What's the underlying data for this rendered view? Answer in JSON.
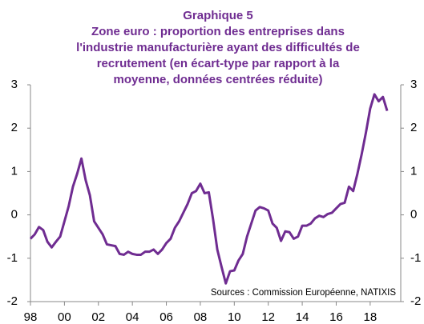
{
  "chart_data": {
    "type": "line",
    "title": [
      "Graphique 5",
      "Zone euro : proportion des entreprises dans",
      "l'industrie manufacturière ayant des difficultés de",
      "recrutement (en écart-type par rapport à la",
      "moyenne, données centrées réduite)"
    ],
    "source": "Sources : Commission Européenne, NATIXIS",
    "x": [
      1998,
      1998.25,
      1998.5,
      1998.75,
      1999,
      1999.25,
      1999.5,
      1999.75,
      2000,
      2000.25,
      2000.5,
      2000.75,
      2001,
      2001.25,
      2001.5,
      2001.75,
      2002,
      2002.25,
      2002.5,
      2002.75,
      2003,
      2003.25,
      2003.5,
      2003.75,
      2004,
      2004.25,
      2004.5,
      2004.75,
      2005,
      2005.25,
      2005.5,
      2005.75,
      2006,
      2006.25,
      2006.5,
      2006.75,
      2007,
      2007.25,
      2007.5,
      2007.75,
      2008,
      2008.25,
      2008.5,
      2008.75,
      2009,
      2009.25,
      2009.5,
      2009.75,
      2010,
      2010.25,
      2010.5,
      2010.75,
      2011,
      2011.25,
      2011.5,
      2011.75,
      2012,
      2012.25,
      2012.5,
      2012.75,
      2013,
      2013.25,
      2013.5,
      2013.75,
      2014,
      2014.25,
      2014.5,
      2014.75,
      2015,
      2015.25,
      2015.5,
      2015.75,
      2016,
      2016.25,
      2016.5,
      2016.75,
      2017,
      2017.25,
      2017.5,
      2017.75,
      2018,
      2018.25,
      2018.5,
      2018.75,
      2019
    ],
    "series": [
      {
        "name": "Difficultés de recrutement",
        "color": "#6f2c91",
        "values": [
          -0.55,
          -0.45,
          -0.28,
          -0.35,
          -0.62,
          -0.75,
          -0.62,
          -0.5,
          -0.15,
          0.2,
          0.65,
          0.95,
          1.3,
          0.8,
          0.45,
          -0.15,
          -0.3,
          -0.45,
          -0.68,
          -0.7,
          -0.72,
          -0.9,
          -0.92,
          -0.85,
          -0.9,
          -0.92,
          -0.92,
          -0.85,
          -0.85,
          -0.8,
          -0.9,
          -0.8,
          -0.65,
          -0.55,
          -0.3,
          -0.15,
          0.05,
          0.25,
          0.5,
          0.55,
          0.72,
          0.5,
          0.52,
          -0.1,
          -0.8,
          -1.2,
          -1.58,
          -1.3,
          -1.28,
          -1.05,
          -0.9,
          -0.5,
          -0.2,
          0.1,
          0.18,
          0.15,
          0.1,
          -0.2,
          -0.3,
          -0.6,
          -0.38,
          -0.4,
          -0.55,
          -0.5,
          -0.25,
          -0.25,
          -0.2,
          -0.08,
          -0.02,
          -0.05,
          0.02,
          0.05,
          0.15,
          0.25,
          0.28,
          0.65,
          0.55,
          0.95,
          1.4,
          1.9,
          2.45,
          2.78,
          2.62,
          2.72,
          2.4
        ]
      }
    ],
    "xlim": [
      1998,
      2019.8
    ],
    "xticks": [
      {
        "value": 1998,
        "label": "98"
      },
      {
        "value": 2000,
        "label": "00"
      },
      {
        "value": 2002,
        "label": "02"
      },
      {
        "value": 2004,
        "label": "04"
      },
      {
        "value": 2006,
        "label": "06"
      },
      {
        "value": 2008,
        "label": "08"
      },
      {
        "value": 2010,
        "label": "10"
      },
      {
        "value": 2012,
        "label": "12"
      },
      {
        "value": 2014,
        "label": "14"
      },
      {
        "value": 2016,
        "label": "16"
      },
      {
        "value": 2018,
        "label": "18"
      }
    ],
    "ylim": [
      -2,
      3
    ],
    "yticks": [
      -2,
      -1,
      0,
      1,
      2,
      3
    ],
    "y2lim": [
      -2,
      3
    ],
    "y2ticks": [
      -2,
      -1,
      0,
      1,
      2,
      3
    ]
  }
}
